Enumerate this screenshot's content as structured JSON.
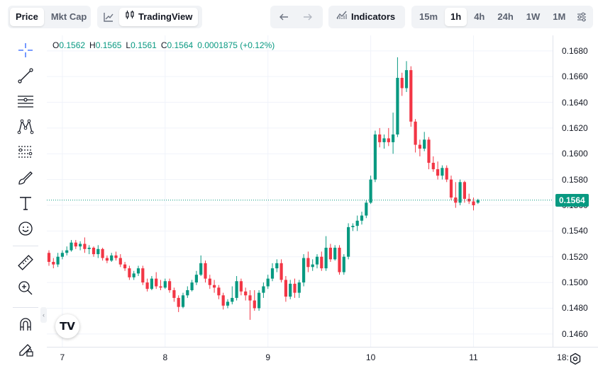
{
  "header": {
    "price_label": "Price",
    "mktcap_label": "Mkt Cap",
    "tradingview_label": "TradingView",
    "indicators_label": "Indicators",
    "intervals": [
      "15m",
      "1h",
      "4h",
      "24h",
      "1W",
      "1M"
    ],
    "active_interval": "1h"
  },
  "ohlc": {
    "o_label": "O",
    "o_value": "0.1562",
    "h_label": "H",
    "h_value": "0.1565",
    "l_label": "L",
    "l_value": "0.1561",
    "c_label": "C",
    "c_value": "0.1564",
    "change": "0.0001875 (+0.12%)"
  },
  "toolbar": {
    "tools": [
      "crosshair-icon",
      "trend-line-icon",
      "horizontal-lines-icon",
      "pattern-icon",
      "fib-icon",
      "brush-icon",
      "text-icon",
      "emoji-icon",
      "ruler-icon",
      "zoom-in-icon",
      "magnet-icon",
      "lock-draw-icon"
    ]
  },
  "logo": "TV",
  "colors": {
    "up": "#089981",
    "down": "#f23645",
    "grid": "#f0f3fa",
    "axis": "#e0e3eb"
  },
  "chart_data": {
    "type": "candlestick",
    "price_axis_ticks": [
      "0.1680",
      "0.1660",
      "0.1640",
      "0.1620",
      "0.1600",
      "0.1580",
      "0.1560",
      "0.1540",
      "0.1520",
      "0.1500",
      "0.1480",
      "0.1460"
    ],
    "time_axis_ticks": [
      "7",
      "8",
      "9",
      "10",
      "11",
      "18:"
    ],
    "ylim": [
      0.145,
      0.1692
    ],
    "last_price": "0.1564",
    "candles": [
      [
        0.1523,
        0.1525,
        0.1513,
        0.1516
      ],
      [
        0.1516,
        0.1519,
        0.1511,
        0.1514
      ],
      [
        0.1514,
        0.1523,
        0.1512,
        0.152
      ],
      [
        0.152,
        0.1525,
        0.1518,
        0.1523
      ],
      [
        0.1523,
        0.1528,
        0.1521,
        0.1525
      ],
      [
        0.1525,
        0.1533,
        0.1524,
        0.1531
      ],
      [
        0.1531,
        0.1533,
        0.1526,
        0.1528
      ],
      [
        0.1528,
        0.1532,
        0.1525,
        0.153
      ],
      [
        0.153,
        0.1535,
        0.1523,
        0.1526
      ],
      [
        0.1526,
        0.1529,
        0.1522,
        0.1527
      ],
      [
        0.1527,
        0.1528,
        0.152,
        0.1522
      ],
      [
        0.1522,
        0.1529,
        0.1519,
        0.1526
      ],
      [
        0.1526,
        0.1527,
        0.1517,
        0.1519
      ],
      [
        0.1519,
        0.1521,
        0.1515,
        0.1517
      ],
      [
        0.1517,
        0.1523,
        0.1516,
        0.1521
      ],
      [
        0.1521,
        0.1524,
        0.1517,
        0.1519
      ],
      [
        0.1519,
        0.1522,
        0.1512,
        0.1514
      ],
      [
        0.1514,
        0.1516,
        0.1509,
        0.1511
      ],
      [
        0.1511,
        0.1513,
        0.1502,
        0.1504
      ],
      [
        0.1504,
        0.1509,
        0.1502,
        0.1507
      ],
      [
        0.1507,
        0.1513,
        0.1505,
        0.1511
      ],
      [
        0.1511,
        0.1513,
        0.1498,
        0.15
      ],
      [
        0.15,
        0.1503,
        0.1493,
        0.1495
      ],
      [
        0.1495,
        0.1505,
        0.1494,
        0.1503
      ],
      [
        0.1503,
        0.1508,
        0.1495,
        0.1497
      ],
      [
        0.1497,
        0.1502,
        0.1494,
        0.1496
      ],
      [
        0.1496,
        0.1503,
        0.1495,
        0.1501
      ],
      [
        0.1501,
        0.1503,
        0.1492,
        0.1494
      ],
      [
        0.1494,
        0.1496,
        0.1485,
        0.1488
      ],
      [
        0.1488,
        0.149,
        0.1477,
        0.1481
      ],
      [
        0.1481,
        0.1492,
        0.148,
        0.149
      ],
      [
        0.149,
        0.1497,
        0.1488,
        0.1494
      ],
      [
        0.1494,
        0.1502,
        0.1493,
        0.15
      ],
      [
        0.15,
        0.1509,
        0.1498,
        0.1506
      ],
      [
        0.1506,
        0.1521,
        0.1505,
        0.1515
      ],
      [
        0.1515,
        0.1517,
        0.15,
        0.1503
      ],
      [
        0.1503,
        0.1506,
        0.1495,
        0.1498
      ],
      [
        0.1498,
        0.1502,
        0.1492,
        0.1496
      ],
      [
        0.1496,
        0.1498,
        0.1487,
        0.149
      ],
      [
        0.149,
        0.1492,
        0.1479,
        0.1482
      ],
      [
        0.1482,
        0.1487,
        0.148,
        0.1485
      ],
      [
        0.1485,
        0.1497,
        0.1483,
        0.1488
      ],
      [
        0.1488,
        0.1505,
        0.1486,
        0.1501
      ],
      [
        0.1501,
        0.1503,
        0.149,
        0.1493
      ],
      [
        0.1493,
        0.1496,
        0.1486,
        0.149
      ],
      [
        0.149,
        0.1494,
        0.1471,
        0.1486
      ],
      [
        0.1486,
        0.1494,
        0.1478,
        0.148
      ],
      [
        0.148,
        0.1494,
        0.1478,
        0.1492
      ],
      [
        0.1492,
        0.15,
        0.1488,
        0.1497
      ],
      [
        0.1497,
        0.1506,
        0.1495,
        0.1503
      ],
      [
        0.1503,
        0.1515,
        0.1501,
        0.1511
      ],
      [
        0.1511,
        0.1518,
        0.1508,
        0.1515
      ],
      [
        0.1515,
        0.1518,
        0.15,
        0.1502
      ],
      [
        0.1502,
        0.1505,
        0.1485,
        0.1489
      ],
      [
        0.1489,
        0.1502,
        0.1487,
        0.1499
      ],
      [
        0.1499,
        0.1503,
        0.1488,
        0.1492
      ],
      [
        0.1492,
        0.1502,
        0.1488,
        0.15
      ],
      [
        0.15,
        0.1522,
        0.1497,
        0.1519
      ],
      [
        0.1519,
        0.1524,
        0.1508,
        0.1512
      ],
      [
        0.1512,
        0.1518,
        0.1509,
        0.1514
      ],
      [
        0.1514,
        0.1522,
        0.1511,
        0.152
      ],
      [
        0.152,
        0.1524,
        0.1509,
        0.1511
      ],
      [
        0.1511,
        0.1536,
        0.1509,
        0.1527
      ],
      [
        0.1527,
        0.153,
        0.1516,
        0.1518
      ],
      [
        0.1518,
        0.1529,
        0.1517,
        0.1527
      ],
      [
        0.1527,
        0.1529,
        0.1506,
        0.1508
      ],
      [
        0.1508,
        0.1522,
        0.1506,
        0.152
      ],
      [
        0.152,
        0.1546,
        0.1518,
        0.1543
      ],
      [
        0.1543,
        0.1546,
        0.154,
        0.1544
      ],
      [
        0.1544,
        0.1552,
        0.154,
        0.1548
      ],
      [
        0.1548,
        0.1555,
        0.1545,
        0.1552
      ],
      [
        0.1552,
        0.1564,
        0.155,
        0.1562
      ],
      [
        0.1562,
        0.1583,
        0.1561,
        0.158
      ],
      [
        0.158,
        0.1618,
        0.1578,
        0.1615
      ],
      [
        0.1615,
        0.162,
        0.1605,
        0.1609
      ],
      [
        0.1609,
        0.1615,
        0.1604,
        0.1612
      ],
      [
        0.1612,
        0.162,
        0.1606,
        0.1609
      ],
      [
        0.1609,
        0.1632,
        0.16,
        0.1615
      ],
      [
        0.1615,
        0.1675,
        0.1613,
        0.1659
      ],
      [
        0.1659,
        0.1663,
        0.1645,
        0.1651
      ],
      [
        0.1651,
        0.1672,
        0.1648,
        0.1665
      ],
      [
        0.1665,
        0.1668,
        0.1621,
        0.1625
      ],
      [
        0.1625,
        0.1627,
        0.1601,
        0.1607
      ],
      [
        0.1607,
        0.1611,
        0.1598,
        0.1604
      ],
      [
        0.1604,
        0.1617,
        0.1602,
        0.1611
      ],
      [
        0.1611,
        0.1613,
        0.1588,
        0.1593
      ],
      [
        0.1593,
        0.1598,
        0.1586,
        0.1588
      ],
      [
        0.1588,
        0.1594,
        0.158,
        0.1583
      ],
      [
        0.1583,
        0.1591,
        0.158,
        0.1589
      ],
      [
        0.1589,
        0.1591,
        0.1578,
        0.158
      ],
      [
        0.158,
        0.1583,
        0.1564,
        0.1566
      ],
      [
        0.1566,
        0.1578,
        0.1558,
        0.1562
      ],
      [
        0.1562,
        0.158,
        0.156,
        0.1578
      ],
      [
        0.1578,
        0.1579,
        0.1562,
        0.1565
      ],
      [
        0.1565,
        0.1569,
        0.1561,
        0.1563
      ],
      [
        0.1563,
        0.1566,
        0.1556,
        0.156
      ],
      [
        0.1562,
        0.1565,
        0.1561,
        0.1564
      ]
    ]
  }
}
